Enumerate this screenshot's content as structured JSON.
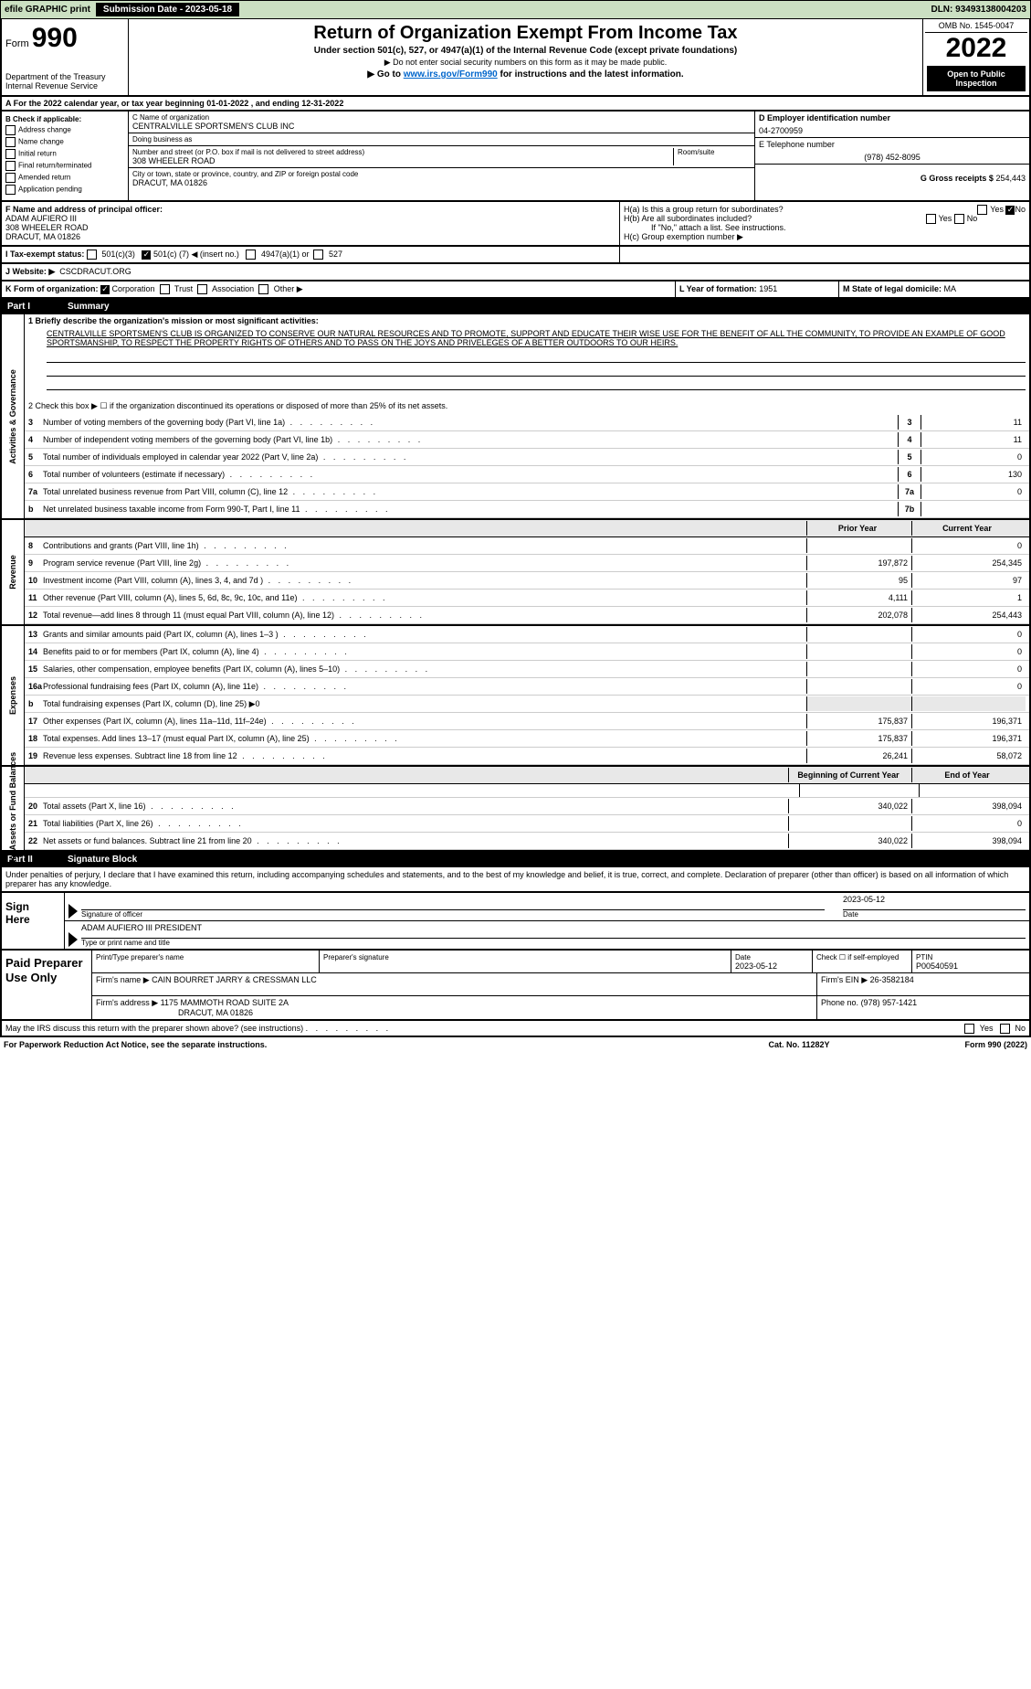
{
  "topbar": {
    "efile": "efile GRAPHIC print",
    "submission": "Submission Date - 2023-05-18",
    "dln": "DLN: 93493138004203"
  },
  "header": {
    "form_prefix": "Form",
    "form_num": "990",
    "title": "Return of Organization Exempt From Income Tax",
    "sub1": "Under section 501(c), 527, or 4947(a)(1) of the Internal Revenue Code (except private foundations)",
    "sub2": "▶ Do not enter social security numbers on this form as it may be made public.",
    "sub3_pre": "▶ Go to ",
    "sub3_link": "www.irs.gov/Form990",
    "sub3_post": " for instructions and the latest information.",
    "dept": "Department of the Treasury",
    "irs": "Internal Revenue Service",
    "omb": "OMB No. 1545-0047",
    "year": "2022",
    "open": "Open to Public Inspection"
  },
  "rowA": "A For the 2022 calendar year, or tax year beginning 01-01-2022    , and ending 12-31-2022",
  "boxB": {
    "label": "B Check if applicable:",
    "opts": [
      "Address change",
      "Name change",
      "Initial return",
      "Final return/terminated",
      "Amended return",
      "Application pending"
    ]
  },
  "boxC": {
    "name_label": "C Name of organization",
    "name": "CENTRALVILLE SPORTSMEN'S CLUB INC",
    "dba_label": "Doing business as",
    "dba": "",
    "street_label": "Number and street (or P.O. box if mail is not delivered to street address)",
    "room_label": "Room/suite",
    "street": "308 WHEELER ROAD",
    "city_label": "City or town, state or province, country, and ZIP or foreign postal code",
    "city": "DRACUT, MA  01826"
  },
  "boxD": {
    "label": "D Employer identification number",
    "ein": "04-2700959"
  },
  "boxE": {
    "label": "E Telephone number",
    "phone": "(978) 452-8095"
  },
  "boxG": {
    "label": "G Gross receipts $",
    "val": "254,443"
  },
  "boxF": {
    "label": "F Name and address of principal officer:",
    "name": "ADAM AUFIERO III",
    "addr1": "308 WHEELER ROAD",
    "addr2": "DRACUT, MA  01826"
  },
  "boxH": {
    "a": "H(a)  Is this a group return for subordinates?",
    "a_yes": "Yes",
    "a_no": "No",
    "b": "H(b)  Are all subordinates included?",
    "b_note": "If \"No,\" attach a list. See instructions.",
    "c": "H(c)  Group exemption number ▶"
  },
  "rowI": {
    "label": "I  Tax-exempt status:",
    "opt1": "501(c)(3)",
    "opt2_pre": "501(c) (",
    "opt2_num": "7",
    "opt2_post": ") ◀ (insert no.)",
    "opt3": "4947(a)(1) or",
    "opt4": "527"
  },
  "rowJ": {
    "label": "J  Website: ▶",
    "val": "CSCDRACUT.ORG"
  },
  "rowK": {
    "label": "K Form of organization:",
    "corp": "Corporation",
    "trust": "Trust",
    "assoc": "Association",
    "other": "Other ▶"
  },
  "rowL": {
    "label": "L Year of formation:",
    "val": "1951"
  },
  "rowM": {
    "label": "M State of legal domicile:",
    "val": "MA"
  },
  "part1": {
    "title": "Part I",
    "name": "Summary",
    "line1_label": "1  Briefly describe the organization's mission or most significant activities:",
    "mission": "CENTRALVILLE SPORTSMEN'S CLUB IS ORGANIZED TO CONSERVE OUR NATURAL RESOURCES AND TO PROMOTE, SUPPORT AND EDUCATE THEIR WISE USE FOR THE BENEFIT OF ALL THE COMMUNITY, TO PROVIDE AN EXAMPLE OF GOOD SPORTSMANSHIP, TO RESPECT THE PROPERTY RIGHTS OF OTHERS AND TO PASS ON THE JOYS AND PRIVELEGES OF A BETTER OUTDOORS TO OUR HEIRS.",
    "line2": "2   Check this box ▶ ☐  if the organization discontinued its operations or disposed of more than 25% of its net assets.",
    "lines_simple": [
      {
        "n": "3",
        "d": "Number of voting members of the governing body (Part VI, line 1a)",
        "box": "3",
        "v": "11"
      },
      {
        "n": "4",
        "d": "Number of independent voting members of the governing body (Part VI, line 1b)",
        "box": "4",
        "v": "11"
      },
      {
        "n": "5",
        "d": "Total number of individuals employed in calendar year 2022 (Part V, line 2a)",
        "box": "5",
        "v": "0"
      },
      {
        "n": "6",
        "d": "Total number of volunteers (estimate if necessary)",
        "box": "6",
        "v": "130"
      },
      {
        "n": "7a",
        "d": "Total unrelated business revenue from Part VIII, column (C), line 12",
        "box": "7a",
        "v": "0"
      },
      {
        "n": "b",
        "d": "Net unrelated business taxable income from Form 990-T, Part I, line 11",
        "box": "7b",
        "v": ""
      }
    ],
    "hdr_prior": "Prior Year",
    "hdr_current": "Current Year",
    "vert_gov": "Activities & Governance",
    "vert_rev": "Revenue",
    "vert_exp": "Expenses",
    "vert_net": "Net Assets or Fund Balances",
    "rev": [
      {
        "n": "8",
        "d": "Contributions and grants (Part VIII, line 1h)",
        "p": "",
        "c": "0"
      },
      {
        "n": "9",
        "d": "Program service revenue (Part VIII, line 2g)",
        "p": "197,872",
        "c": "254,345"
      },
      {
        "n": "10",
        "d": "Investment income (Part VIII, column (A), lines 3, 4, and 7d )",
        "p": "95",
        "c": "97"
      },
      {
        "n": "11",
        "d": "Other revenue (Part VIII, column (A), lines 5, 6d, 8c, 9c, 10c, and 11e)",
        "p": "4,111",
        "c": "1"
      },
      {
        "n": "12",
        "d": "Total revenue—add lines 8 through 11 (must equal Part VIII, column (A), line 12)",
        "p": "202,078",
        "c": "254,443"
      }
    ],
    "exp": [
      {
        "n": "13",
        "d": "Grants and similar amounts paid (Part IX, column (A), lines 1–3 )",
        "p": "",
        "c": "0"
      },
      {
        "n": "14",
        "d": "Benefits paid to or for members (Part IX, column (A), line 4)",
        "p": "",
        "c": "0"
      },
      {
        "n": "15",
        "d": "Salaries, other compensation, employee benefits (Part IX, column (A), lines 5–10)",
        "p": "",
        "c": "0"
      },
      {
        "n": "16a",
        "d": "Professional fundraising fees (Part IX, column (A), line 11e)",
        "p": "",
        "c": "0"
      },
      {
        "n": "b",
        "d": "Total fundraising expenses (Part IX, column (D), line 25) ▶0",
        "p": null,
        "c": null
      },
      {
        "n": "17",
        "d": "Other expenses (Part IX, column (A), lines 11a–11d, 11f–24e)",
        "p": "175,837",
        "c": "196,371"
      },
      {
        "n": "18",
        "d": "Total expenses. Add lines 13–17 (must equal Part IX, column (A), line 25)",
        "p": "175,837",
        "c": "196,371"
      },
      {
        "n": "19",
        "d": "Revenue less expenses. Subtract line 18 from line 12",
        "p": "26,241",
        "c": "58,072"
      }
    ],
    "hdr_boy": "Beginning of Current Year",
    "hdr_eoy": "End of Year",
    "net": [
      {
        "n": "20",
        "d": "Total assets (Part X, line 16)",
        "p": "340,022",
        "c": "398,094"
      },
      {
        "n": "21",
        "d": "Total liabilities (Part X, line 26)",
        "p": "",
        "c": "0"
      },
      {
        "n": "22",
        "d": "Net assets or fund balances. Subtract line 21 from line 20",
        "p": "340,022",
        "c": "398,094"
      }
    ]
  },
  "part2": {
    "title": "Part II",
    "name": "Signature Block",
    "declaration": "Under penalties of perjury, I declare that I have examined this return, including accompanying schedules and statements, and to the best of my knowledge and belief, it is true, correct, and complete. Declaration of preparer (other than officer) is based on all information of which preparer has any knowledge."
  },
  "sign": {
    "label1": "Sign",
    "label2": "Here",
    "sig_of": "Signature of officer",
    "date": "Date",
    "date_val": "2023-05-12",
    "name": "ADAM AUFIERO III PRESIDENT",
    "name_label": "Type or print name and title"
  },
  "paid": {
    "label": "Paid Preparer Use Only",
    "h1": "Print/Type preparer's name",
    "h2": "Preparer's signature",
    "h3": "Date",
    "h4": "Check ☐ if self-employed",
    "h5": "PTIN",
    "date": "2023-05-12",
    "ptin": "P00540591",
    "firm_name_label": "Firm's name    ▶",
    "firm_name": "CAIN BOURRET JARRY & CRESSMAN LLC",
    "firm_ein_label": "Firm's EIN ▶",
    "firm_ein": "26-3582184",
    "firm_addr_label": "Firm's address ▶",
    "firm_addr1": "1175 MAMMOTH ROAD SUITE 2A",
    "firm_addr2": "DRACUT, MA  01826",
    "phone_label": "Phone no.",
    "phone": "(978) 957-1421"
  },
  "discuss": {
    "text": "May the IRS discuss this return with the preparer shown above? (see instructions)",
    "yes": "Yes",
    "no": "No"
  },
  "footer": {
    "left": "For Paperwork Reduction Act Notice, see the separate instructions.",
    "mid": "Cat. No. 11282Y",
    "right": "Form 990 (2022)"
  }
}
